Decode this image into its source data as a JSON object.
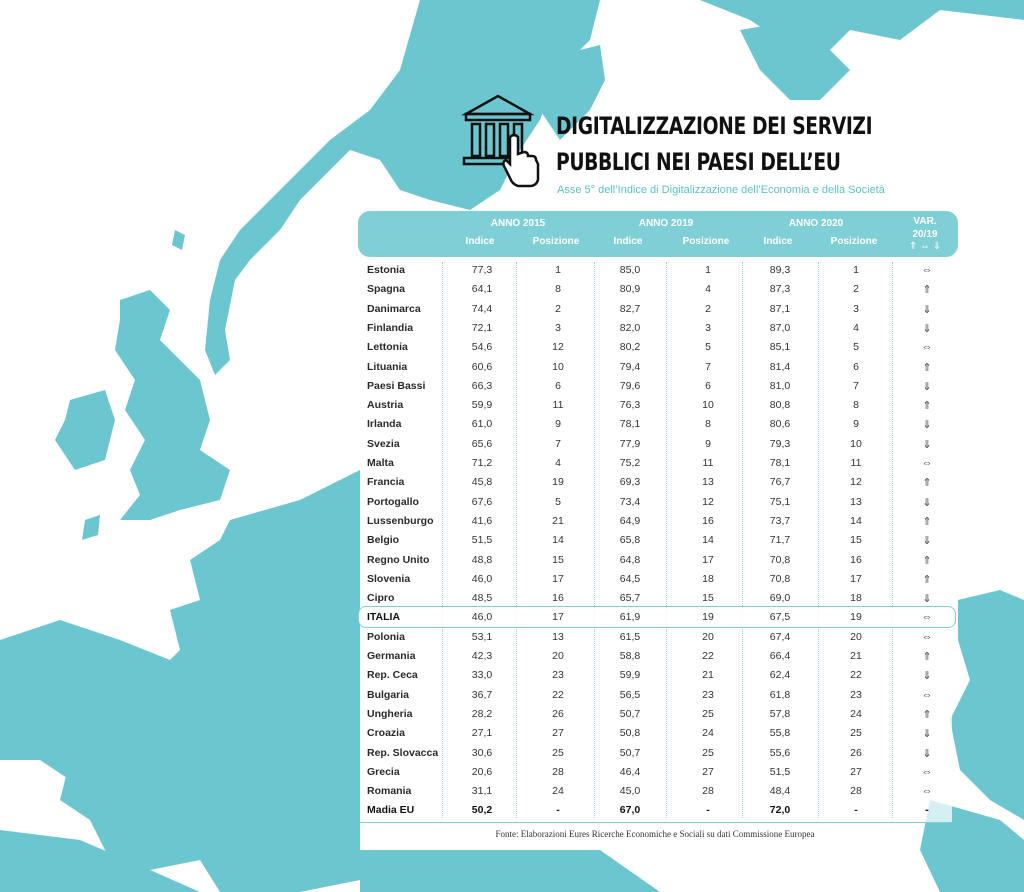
{
  "title_line1": "DIGITALIZZAZIONE DEI SERVIZI",
  "title_line2": "PUBBLICI NEI PAESI DELL’EU",
  "subtitle": "Asse 5° dell’Indice di Digitalizzazione dell’Economia e della Società",
  "header": {
    "anno2015": "ANNO 2015",
    "anno2019": "ANNO 2019",
    "anno2020": "ANNO 2020",
    "indice": "Indice",
    "posizione": "Posizione",
    "var_line1": "VAR.",
    "var_line2": "20/19",
    "var_line3": "⇑ ⇔ ⇓"
  },
  "colors": {
    "map": "#6cc6cf",
    "accent": "#7fcfd6"
  },
  "rows": [
    {
      "name": "Estonia",
      "i15": "77,3",
      "p15": "1",
      "i19": "85,0",
      "p19": "1",
      "i20": "89,3",
      "p20": "1",
      "var": "⇔"
    },
    {
      "name": "Spagna",
      "i15": "64,1",
      "p15": "8",
      "i19": "80,9",
      "p19": "4",
      "i20": "87,3",
      "p20": "2",
      "var": "⇑"
    },
    {
      "name": "Danimarca",
      "i15": "74,4",
      "p15": "2",
      "i19": "82,7",
      "p19": "2",
      "i20": "87,1",
      "p20": "3",
      "var": "⇓"
    },
    {
      "name": "Finlandia",
      "i15": "72,1",
      "p15": "3",
      "i19": "82,0",
      "p19": "3",
      "i20": "87,0",
      "p20": "4",
      "var": "⇓"
    },
    {
      "name": "Lettonia",
      "i15": "54,6",
      "p15": "12",
      "i19": "80,2",
      "p19": "5",
      "i20": "85,1",
      "p20": "5",
      "var": "⇔"
    },
    {
      "name": "Lituania",
      "i15": "60,6",
      "p15": "10",
      "i19": "79,4",
      "p19": "7",
      "i20": "81,4",
      "p20": "6",
      "var": "⇑"
    },
    {
      "name": "Paesi Bassi",
      "i15": "66,3",
      "p15": "6",
      "i19": "79,6",
      "p19": "6",
      "i20": "81,0",
      "p20": "7",
      "var": "⇓"
    },
    {
      "name": "Austria",
      "i15": "59,9",
      "p15": "11",
      "i19": "76,3",
      "p19": "10",
      "i20": "80,8",
      "p20": "8",
      "var": "⇑"
    },
    {
      "name": "Irlanda",
      "i15": "61,0",
      "p15": "9",
      "i19": "78,1",
      "p19": "8",
      "i20": "80,6",
      "p20": "9",
      "var": "⇓"
    },
    {
      "name": "Svezia",
      "i15": "65,6",
      "p15": "7",
      "i19": "77,9",
      "p19": "9",
      "i20": "79,3",
      "p20": "10",
      "var": "⇓"
    },
    {
      "name": "Malta",
      "i15": "71,2",
      "p15": "4",
      "i19": "75,2",
      "p19": "11",
      "i20": "78,1",
      "p20": "11",
      "var": "⇔"
    },
    {
      "name": "Francia",
      "i15": "45,8",
      "p15": "19",
      "i19": "69,3",
      "p19": "13",
      "i20": "76,7",
      "p20": "12",
      "var": "⇑"
    },
    {
      "name": "Portogallo",
      "i15": "67,6",
      "p15": "5",
      "i19": "73,4",
      "p19": "12",
      "i20": "75,1",
      "p20": "13",
      "var": "⇓"
    },
    {
      "name": "Lussenburgo",
      "i15": "41,6",
      "p15": "21",
      "i19": "64,9",
      "p19": "16",
      "i20": "73,7",
      "p20": "14",
      "var": "⇑"
    },
    {
      "name": "Belgio",
      "i15": "51,5",
      "p15": "14",
      "i19": "65,8",
      "p19": "14",
      "i20": "71,7",
      "p20": "15",
      "var": "⇓"
    },
    {
      "name": "Regno Unito",
      "i15": "48,8",
      "p15": "15",
      "i19": "64,8",
      "p19": "17",
      "i20": "70,8",
      "p20": "16",
      "var": "⇑"
    },
    {
      "name": "Slovenia",
      "i15": "46,0",
      "p15": "17",
      "i19": "64,5",
      "p19": "18",
      "i20": "70,8",
      "p20": "17",
      "var": "⇑"
    },
    {
      "name": "Cipro",
      "i15": "48,5",
      "p15": "16",
      "i19": "65,7",
      "p19": "15",
      "i20": "69,0",
      "p20": "18",
      "var": "⇓"
    },
    {
      "name": "ITALIA",
      "i15": "46,0",
      "p15": "17",
      "i19": "61,9",
      "p19": "19",
      "i20": "67,5",
      "p20": "19",
      "var": "⇔"
    },
    {
      "name": "Polonia",
      "i15": "53,1",
      "p15": "13",
      "i19": "61,5",
      "p19": "20",
      "i20": "67,4",
      "p20": "20",
      "var": "⇔"
    },
    {
      "name": "Germania",
      "i15": "42,3",
      "p15": "20",
      "i19": "58,8",
      "p19": "22",
      "i20": "66,4",
      "p20": "21",
      "var": "⇑"
    },
    {
      "name": "Rep. Ceca",
      "i15": "33,0",
      "p15": "23",
      "i19": "59,9",
      "p19": "21",
      "i20": "62,4",
      "p20": "22",
      "var": "⇓"
    },
    {
      "name": "Bulgaria",
      "i15": "36,7",
      "p15": "22",
      "i19": "56,5",
      "p19": "23",
      "i20": "61,8",
      "p20": "23",
      "var": "⇔"
    },
    {
      "name": "Ungheria",
      "i15": "28,2",
      "p15": "26",
      "i19": "50,7",
      "p19": "25",
      "i20": "57,8",
      "p20": "24",
      "var": "⇑"
    },
    {
      "name": "Croazia",
      "i15": "27,1",
      "p15": "27",
      "i19": "50,8",
      "p19": "24",
      "i20": "55,8",
      "p20": "25",
      "var": "⇓"
    },
    {
      "name": "Rep. Slovacca",
      "i15": "30,6",
      "p15": "25",
      "i19": "50,7",
      "p19": "25",
      "i20": "55,6",
      "p20": "26",
      "var": "⇓"
    },
    {
      "name": "Grecia",
      "i15": "20,6",
      "p15": "28",
      "i19": "46,4",
      "p19": "27",
      "i20": "51,5",
      "p20": "27",
      "var": "⇔"
    },
    {
      "name": "Romania",
      "i15": "31,1",
      "p15": "24",
      "i19": "45,0",
      "p19": "28",
      "i20": "48,4",
      "p20": "28",
      "var": "⇔"
    },
    {
      "name": "Madia EU",
      "i15": "50,2",
      "p15": "-",
      "i19": "67,0",
      "p19": "-",
      "i20": "72,0",
      "p20": "-",
      "var": "-"
    }
  ],
  "source": "Fonte: Elaborazioni Eures Ricerche Economiche e Sociali su dati Commissione Europea"
}
